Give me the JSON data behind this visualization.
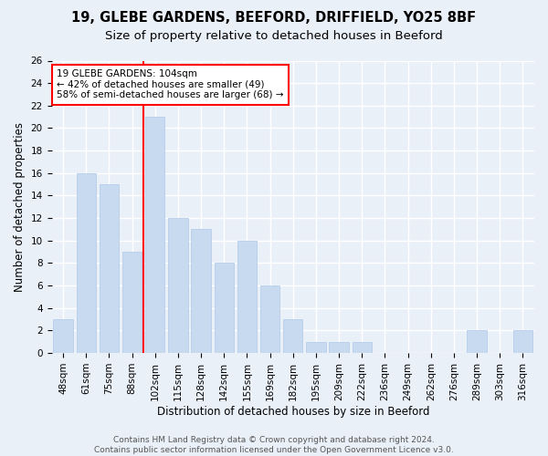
{
  "title1": "19, GLEBE GARDENS, BEEFORD, DRIFFIELD, YO25 8BF",
  "title2": "Size of property relative to detached houses in Beeford",
  "xlabel": "Distribution of detached houses by size in Beeford",
  "ylabel": "Number of detached properties",
  "categories": [
    "48sqm",
    "61sqm",
    "75sqm",
    "88sqm",
    "102sqm",
    "115sqm",
    "128sqm",
    "142sqm",
    "155sqm",
    "169sqm",
    "182sqm",
    "195sqm",
    "209sqm",
    "222sqm",
    "236sqm",
    "249sqm",
    "262sqm",
    "276sqm",
    "289sqm",
    "303sqm",
    "316sqm"
  ],
  "values": [
    3,
    16,
    15,
    9,
    21,
    12,
    11,
    8,
    10,
    6,
    3,
    1,
    1,
    1,
    0,
    0,
    0,
    0,
    2,
    0,
    2
  ],
  "bar_color": "#c8daf0",
  "bar_edgecolor": "#afc8e8",
  "vline_x_index": 4,
  "annotation_text_line1": "19 GLEBE GARDENS: 104sqm",
  "annotation_text_line2": "← 42% of detached houses are smaller (49)",
  "annotation_text_line3": "58% of semi-detached houses are larger (68) →",
  "annotation_box_color": "white",
  "annotation_box_edgecolor": "red",
  "vline_color": "red",
  "ylim": [
    0,
    26
  ],
  "yticks": [
    0,
    2,
    4,
    6,
    8,
    10,
    12,
    14,
    16,
    18,
    20,
    22,
    24,
    26
  ],
  "background_color": "#eaf0f8",
  "grid_color": "white",
  "footer": "Contains HM Land Registry data © Crown copyright and database right 2024.\nContains public sector information licensed under the Open Government Licence v3.0.",
  "title1_fontsize": 10.5,
  "title2_fontsize": 9.5,
  "xlabel_fontsize": 8.5,
  "ylabel_fontsize": 8.5,
  "tick_fontsize": 7.5,
  "annotation_fontsize": 7.5,
  "footer_fontsize": 6.5
}
